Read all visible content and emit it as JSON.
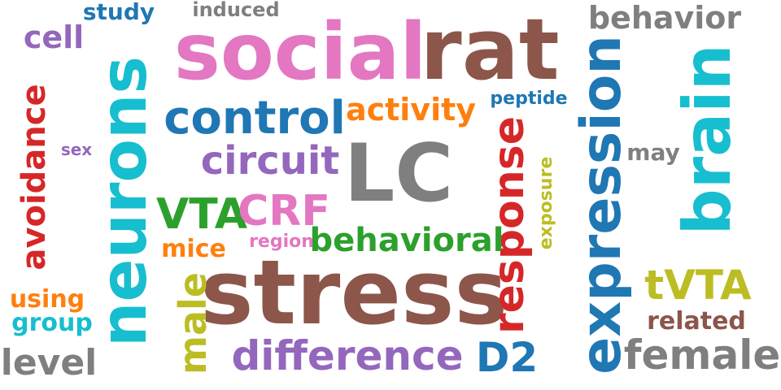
{
  "words": [
    {
      "key": "social",
      "text": "social",
      "color": "#e377c2"
    },
    {
      "key": "rat",
      "text": "rat",
      "color": "#8c564b"
    },
    {
      "key": "stress",
      "text": "stress",
      "color": "#8c564b"
    },
    {
      "key": "neurons",
      "text": "neurons",
      "color": "#17becf"
    },
    {
      "key": "brain",
      "text": "brain",
      "color": "#17becf"
    },
    {
      "key": "expression",
      "text": "expression",
      "color": "#1f77b4"
    },
    {
      "key": "LC",
      "text": "LC",
      "color": "#7f7f7f"
    },
    {
      "key": "control",
      "text": "control",
      "color": "#1f77b4"
    },
    {
      "key": "circuit",
      "text": "circuit",
      "color": "#9467bd"
    },
    {
      "key": "activity",
      "text": "activity",
      "color": "#ff7f0e"
    },
    {
      "key": "behavior",
      "text": "behavior",
      "color": "#7f7f7f"
    },
    {
      "key": "difference",
      "text": "difference",
      "color": "#9467bd"
    },
    {
      "key": "female",
      "text": "female",
      "color": "#7f7f7f"
    },
    {
      "key": "response",
      "text": "response",
      "color": "#d62728"
    },
    {
      "key": "avoidance",
      "text": "avoidance",
      "color": "#d62728"
    },
    {
      "key": "VTA",
      "text": "VTA",
      "color": "#2ca02c"
    },
    {
      "key": "CRF",
      "text": "CRF",
      "color": "#e377c2"
    },
    {
      "key": "behavioral",
      "text": "behavioral",
      "color": "#2ca02c"
    },
    {
      "key": "tVTA",
      "text": "tVTA",
      "color": "#bcbd22"
    },
    {
      "key": "D2",
      "text": "D2",
      "color": "#1f77b4"
    },
    {
      "key": "male",
      "text": "male",
      "color": "#bcbd22"
    },
    {
      "key": "cell",
      "text": "cell",
      "color": "#9467bd"
    },
    {
      "key": "study",
      "text": "study",
      "color": "#1f77b4"
    },
    {
      "key": "induced",
      "text": "induced",
      "color": "#7f7f7f"
    },
    {
      "key": "peptide",
      "text": "peptide",
      "color": "#1f77b4"
    },
    {
      "key": "sex",
      "text": "sex",
      "color": "#9467bd"
    },
    {
      "key": "may",
      "text": "may",
      "color": "#7f7f7f"
    },
    {
      "key": "exposure",
      "text": "exposure",
      "color": "#bcbd22"
    },
    {
      "key": "mice",
      "text": "mice",
      "color": "#ff7f0e"
    },
    {
      "key": "region",
      "text": "region",
      "color": "#e377c2"
    },
    {
      "key": "using",
      "text": "using",
      "color": "#ff7f0e"
    },
    {
      "key": "group",
      "text": "group",
      "color": "#17becf"
    },
    {
      "key": "level",
      "text": "level",
      "color": "#7f7f7f"
    },
    {
      "key": "related",
      "text": "related",
      "color": "#8c564b"
    }
  ]
}
